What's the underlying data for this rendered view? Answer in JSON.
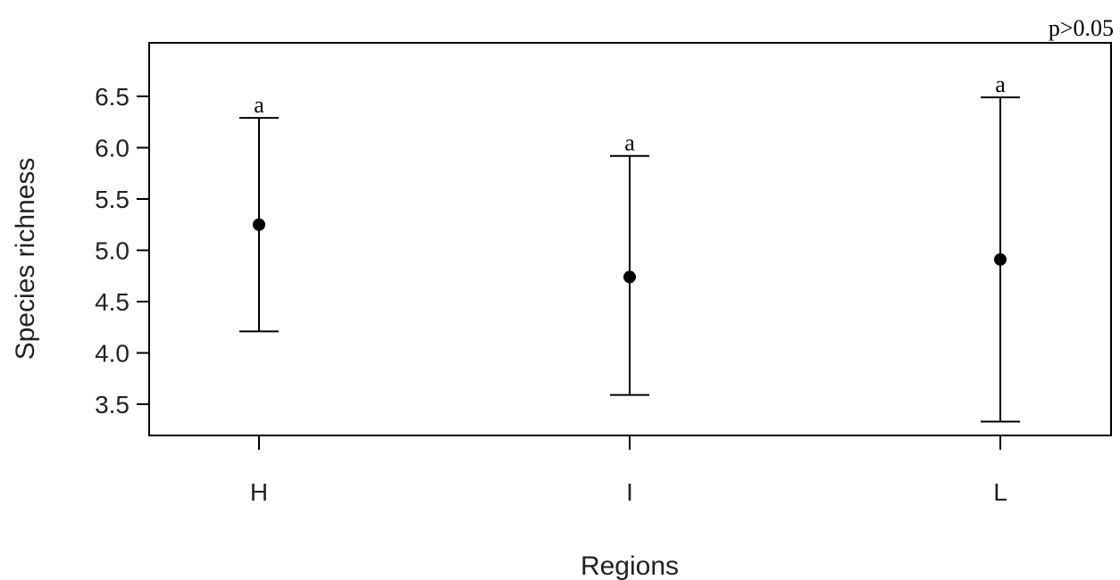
{
  "chart_data": {
    "type": "errorbar",
    "categories": [
      "H",
      "I",
      "L"
    ],
    "series": [
      {
        "values": [
          5.25,
          4.74,
          4.91
        ],
        "lower": [
          4.21,
          3.59,
          3.33
        ],
        "upper": [
          6.29,
          5.92,
          6.49
        ]
      }
    ],
    "significance_letters": [
      "a",
      "a",
      "a"
    ],
    "annotation": "p>0.05",
    "xlabel": "Regions",
    "ylabel": "Species richness",
    "yticks": [
      3.5,
      4.0,
      4.5,
      5.0,
      5.5,
      6.0,
      6.5
    ],
    "yticks_labels": [
      "3.5",
      "4.0",
      "4.5",
      "5.0",
      "5.5",
      "6.0",
      "6.5"
    ],
    "ylim": [
      3.2,
      7.0
    ],
    "grid": false
  }
}
